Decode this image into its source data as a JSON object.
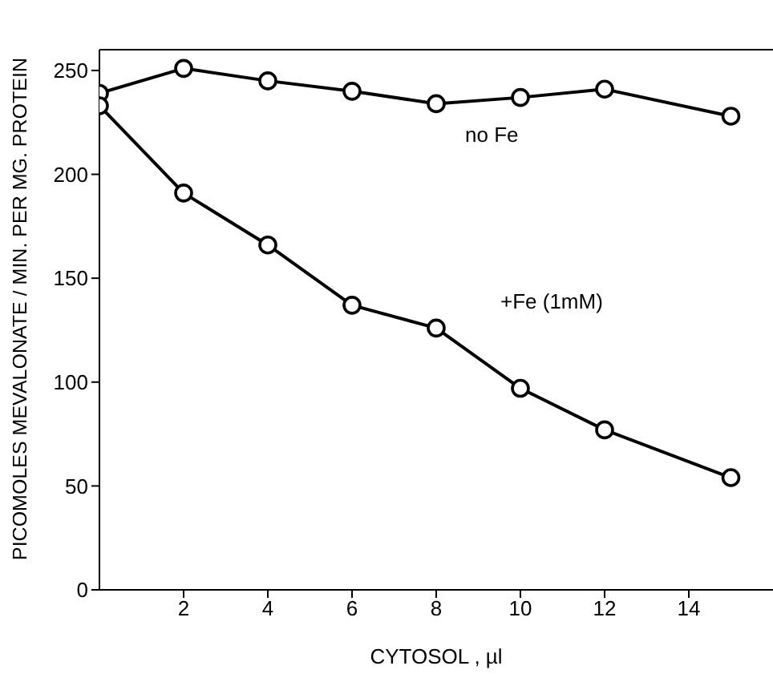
{
  "chart_data": {
    "type": "line",
    "xlabel": "CYTOSOL , µl",
    "ylabel": "PICOMOLES MEVALONATE / MIN. PER MG. PROTEIN",
    "x": [
      0,
      2,
      4,
      6,
      8,
      10,
      12,
      15
    ],
    "series": [
      {
        "name": "no Fe",
        "color": "#000000",
        "values": [
          239,
          251,
          245,
          240,
          234,
          237,
          241,
          228
        ]
      },
      {
        "name": "+Fe (1mM)",
        "color": "#000000",
        "values": [
          233,
          191,
          166,
          137,
          126,
          97,
          77,
          54
        ]
      }
    ],
    "xlim": [
      0,
      16
    ],
    "xticks": [
      2,
      4,
      6,
      8,
      10,
      12,
      14
    ],
    "ylim": [
      0,
      260
    ],
    "yticks": [
      0,
      50,
      100,
      150,
      200,
      250
    ],
    "marker": "circle",
    "line_style": "solid",
    "grid": false,
    "legend": false
  }
}
